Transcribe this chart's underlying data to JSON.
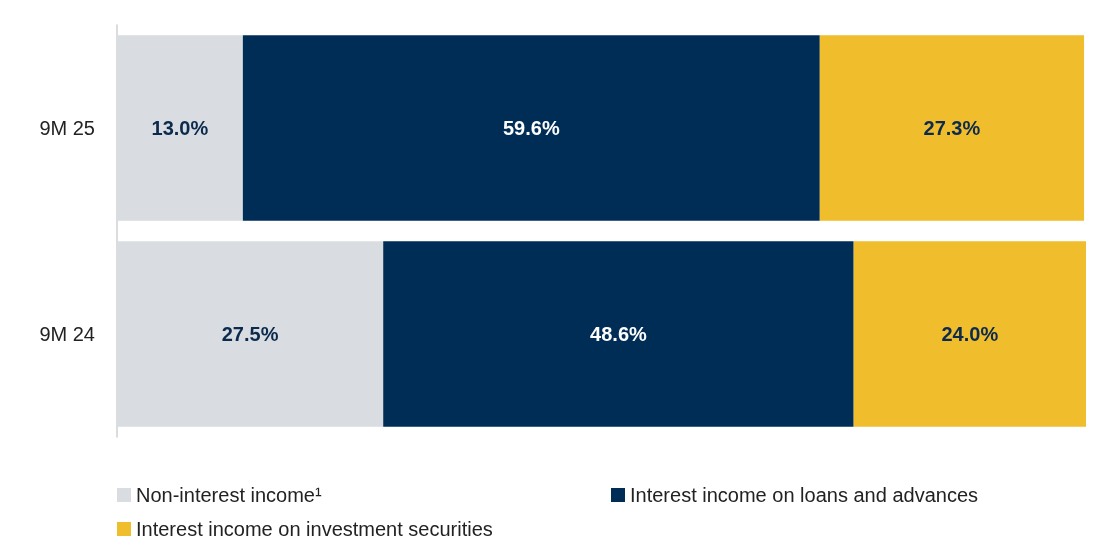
{
  "chart_data": {
    "type": "bar",
    "orientation": "horizontal",
    "stacked": true,
    "categories": [
      "9M 25",
      "9M 24"
    ],
    "series": [
      {
        "name": "Non-interest income¹",
        "color": "#d9dde1",
        "values": [
          13.0,
          27.5
        ],
        "value_labels": [
          "13.0%",
          "27.5%"
        ]
      },
      {
        "name": "Interest income on loans and advances",
        "color": "#002d56",
        "values": [
          59.6,
          48.6
        ],
        "value_labels": [
          "59.6%",
          "48.6%"
        ]
      },
      {
        "name": "Interest income on investment securities",
        "color": "#f0bd2d",
        "values": [
          27.3,
          24.0
        ],
        "value_labels": [
          "27.3%",
          "24.0%"
        ]
      }
    ],
    "legend": "bottom"
  }
}
